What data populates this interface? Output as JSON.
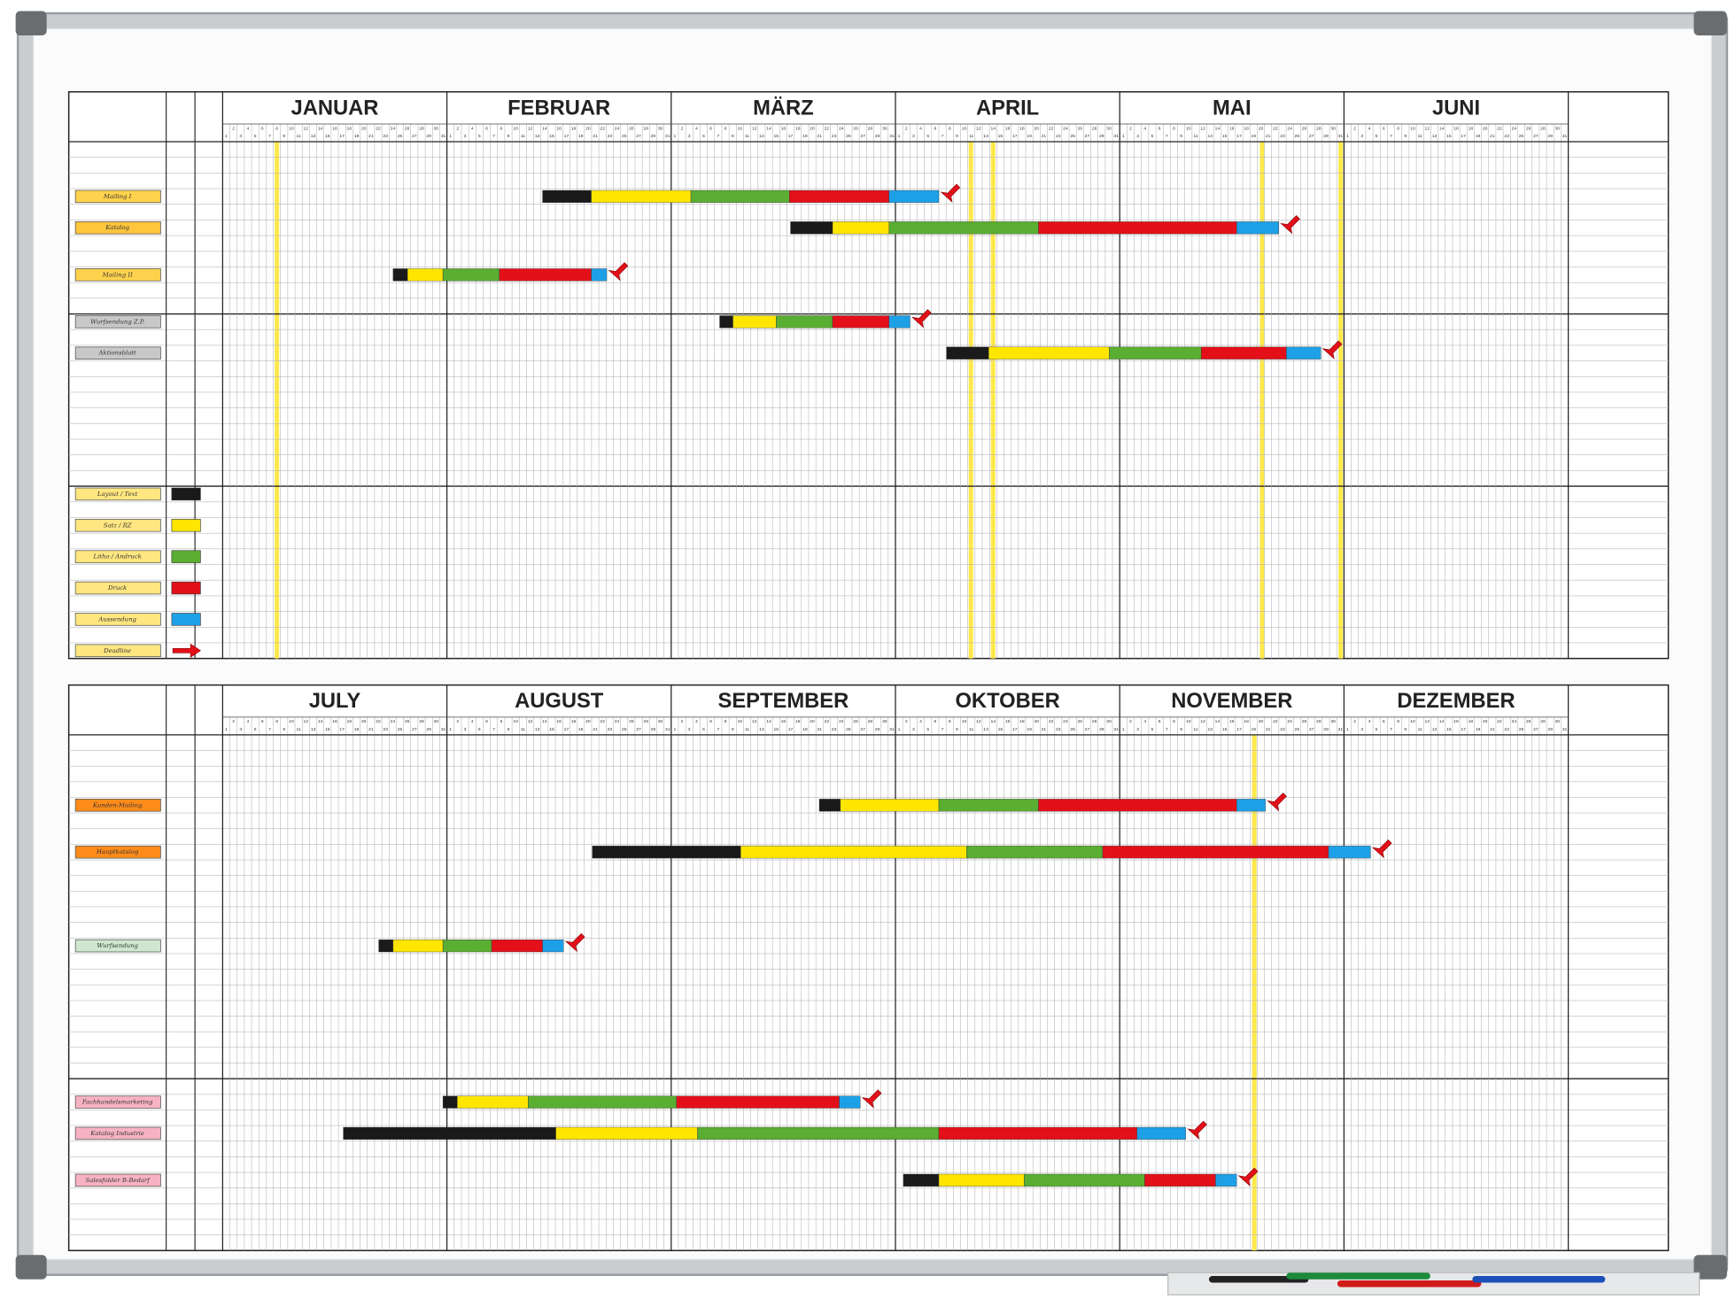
{
  "months_top": [
    "JANUAR",
    "FEBRUAR",
    "MÄRZ",
    "APRIL",
    "MAI",
    "JUNI"
  ],
  "months_bottom": [
    "JULY",
    "AUGUST",
    "SEPTEMBER",
    "OKTOBER",
    "NOVEMBER",
    "DEZEMBER"
  ],
  "days": [
    1,
    2,
    3,
    4,
    5,
    6,
    7,
    8,
    9,
    10,
    11,
    12,
    13,
    14,
    15,
    16,
    17,
    18,
    19,
    20,
    21,
    22,
    23,
    24,
    25,
    26,
    27,
    28,
    29,
    30,
    31
  ],
  "tasks_top": [
    "Mailing I",
    "Katalog",
    "Mailing II",
    "Wurfsendung Z.P.",
    "Aktionsblatt"
  ],
  "legend": [
    "Layout / Text",
    "Satz / RZ",
    "Litho / Andruck",
    "Druck",
    "Aussendung",
    "Deadline"
  ],
  "tasks_bottom": [
    "Kunden-Mailing",
    "Hauptkatalog",
    "Wurfsendung",
    "Fachhandelsmarketing",
    "Katalog Industrie",
    "Salesfolder B-Bedarf"
  ]
}
